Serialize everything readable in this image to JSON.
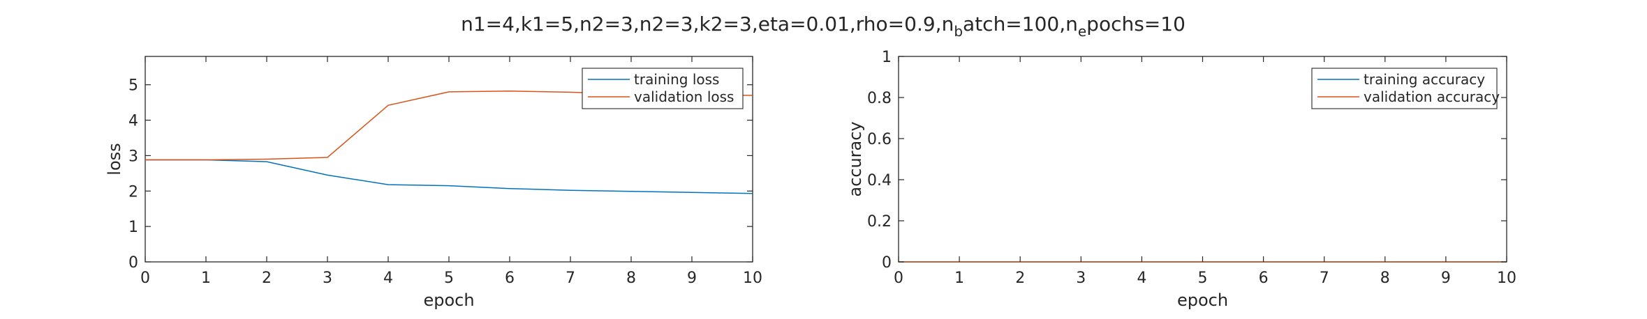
{
  "figure": {
    "title_parts": [
      {
        "text": "n1=4,k1=5,n2=3,n2=3,k2=3,eta=0.01,rho=0.9,n",
        "sub": false
      },
      {
        "text": "b",
        "sub": true
      },
      {
        "text": "atch=100,n",
        "sub": false
      },
      {
        "text": "e",
        "sub": true
      },
      {
        "text": "pochs=10",
        "sub": false
      }
    ]
  },
  "colors": {
    "training": "#0072bd",
    "validation": "#d95319",
    "axis": "#262626"
  },
  "chart_data": [
    {
      "type": "line",
      "xlabel": "epoch",
      "ylabel": "loss",
      "xlim": [
        0,
        10
      ],
      "ylim": [
        0,
        5.8
      ],
      "xticks": [
        0,
        1,
        2,
        3,
        4,
        5,
        6,
        7,
        8,
        9,
        10
      ],
      "yticks": [
        0,
        1,
        2,
        3,
        4,
        5
      ],
      "ytick_labels": [
        "0",
        "1",
        "2",
        "3",
        "4",
        "5"
      ],
      "grid": false,
      "legend_position": "top-right",
      "series": [
        {
          "name": "training loss",
          "color": "training",
          "x": [
            0,
            1,
            2,
            3,
            4,
            5,
            6,
            7,
            8,
            9,
            10
          ],
          "y": [
            2.88,
            2.88,
            2.83,
            2.45,
            2.18,
            2.15,
            2.07,
            2.02,
            1.99,
            1.96,
            1.93
          ]
        },
        {
          "name": "validation loss",
          "color": "validation",
          "x": [
            0,
            1,
            2,
            3,
            4,
            5,
            6,
            7,
            8,
            9,
            10
          ],
          "y": [
            2.88,
            2.88,
            2.9,
            2.95,
            4.42,
            4.8,
            4.82,
            4.79,
            4.73,
            4.71,
            4.7
          ]
        }
      ]
    },
    {
      "type": "line",
      "xlabel": "epoch",
      "ylabel": "accuracy",
      "xlim": [
        0,
        10
      ],
      "ylim": [
        0,
        1
      ],
      "xticks": [
        0,
        1,
        2,
        3,
        4,
        5,
        6,
        7,
        8,
        9,
        10
      ],
      "yticks": [
        0,
        0.2,
        0.4,
        0.6,
        0.8,
        1
      ],
      "ytick_labels": [
        "0",
        "0.2",
        "0.4",
        "0.6",
        "0.8",
        "1"
      ],
      "grid": false,
      "legend_position": "top-right",
      "series": [
        {
          "name": "training accuracy",
          "color": "training",
          "x": [
            0,
            1,
            2,
            3,
            4,
            5,
            6,
            7,
            8,
            9,
            10
          ],
          "y": [
            0,
            0,
            0,
            0,
            0,
            0,
            0,
            0,
            0,
            0,
            0
          ]
        },
        {
          "name": "validation accuracy",
          "color": "validation",
          "x": [
            0,
            1,
            2,
            3,
            4,
            5,
            6,
            7,
            8,
            9,
            10
          ],
          "y": [
            0,
            0,
            0,
            0,
            0,
            0,
            0,
            0,
            0,
            0,
            0
          ]
        }
      ]
    }
  ]
}
